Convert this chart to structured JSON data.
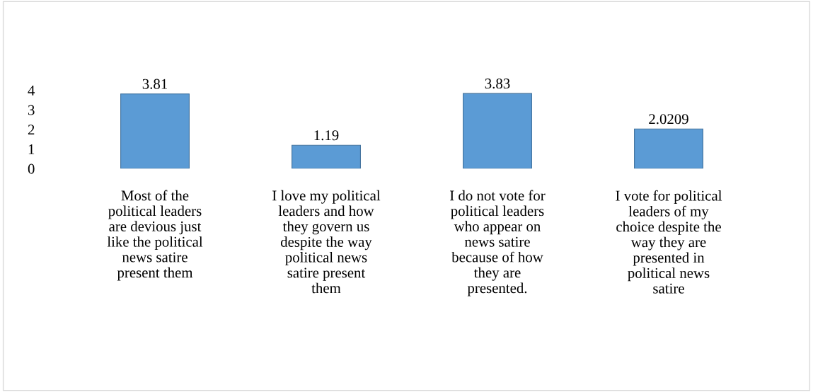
{
  "chart_data": {
    "type": "bar",
    "categories": [
      "Most of the\npolitical leaders\nare devious just\nlike the political\nnews satire\npresent them",
      "I love my political\nleaders and how\nthey govern us\ndespite the way\npolitical news\nsatire present\nthem",
      "I do not vote for\npolitical leaders\nwho appear on\nnews satire\nbecause of how\nthey are\npresented.",
      "I vote for political\nleaders of my\nchoice despite the\nway they are\npresented in\npolitical news\nsatire"
    ],
    "values": [
      3.81,
      1.19,
      3.83,
      2.0209
    ],
    "color": "#5b9bd5",
    "ylim": [
      0,
      4
    ],
    "yticks": [
      0,
      1,
      2,
      3,
      4
    ],
    "data_labels": true,
    "grid": false,
    "legend": false
  }
}
